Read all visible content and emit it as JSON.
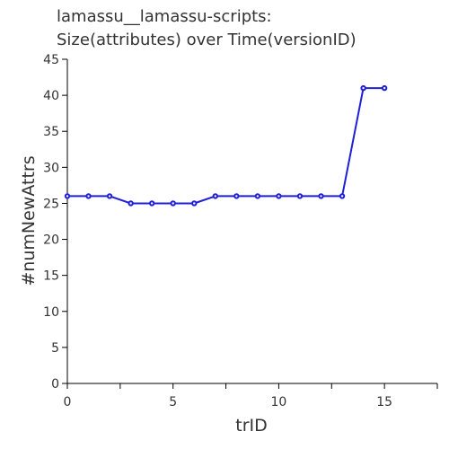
{
  "chart_data": {
    "type": "line",
    "title_lines": [
      "lamassu__lamassu-scripts:",
      "Size(attributes) over Time(versionID)"
    ],
    "xlabel": "trID",
    "ylabel": "#numNewAttrs",
    "xlim": [
      0,
      17.5
    ],
    "ylim": [
      0,
      45
    ],
    "xticks": [
      0,
      5,
      10,
      15
    ],
    "yticks": [
      0,
      5,
      10,
      15,
      20,
      25,
      30,
      35,
      40,
      45
    ],
    "grid": false,
    "series": [
      {
        "color": "#1f1fd8",
        "x": [
          0,
          1,
          2,
          3,
          4,
          5,
          6,
          7,
          8,
          9,
          10,
          11,
          12,
          13,
          14,
          15
        ],
        "y": [
          26,
          26,
          26,
          25,
          25,
          25,
          25,
          26,
          26,
          26,
          26,
          26,
          26,
          26,
          41,
          41
        ]
      }
    ]
  }
}
